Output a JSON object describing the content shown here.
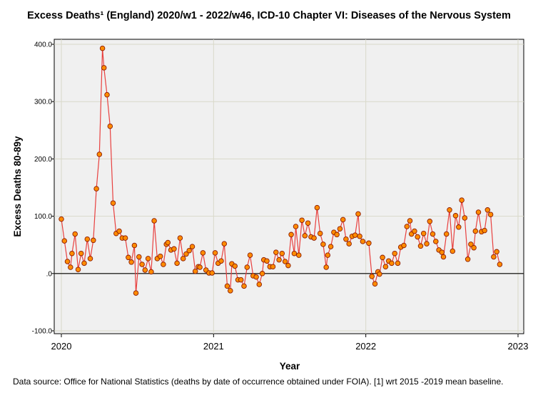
{
  "chart_data": {
    "type": "line",
    "title": "Excess Deaths¹ (England) 2020/w1 - 2022/w46, ICD-10 Chapter VI: Diseases of the Nervous System",
    "xlabel": "Year",
    "ylabel": "Excess Deaths 80-89y",
    "xlim": [
      2020,
      2023
    ],
    "ylim": [
      -100,
      400
    ],
    "y_ticks": [
      {
        "value": 400,
        "label": "400.0"
      },
      {
        "value": 300,
        "label": "300.0"
      },
      {
        "value": 200,
        "label": "200.0"
      },
      {
        "value": 100,
        "label": "100.0"
      },
      {
        "value": 0,
        "label": ".0"
      },
      {
        "value": -100,
        "label": "-100.0"
      }
    ],
    "x_ticks": [
      {
        "value": 2020,
        "label": "2020"
      },
      {
        "value": 2021,
        "label": "2021"
      },
      {
        "value": 2022,
        "label": "2022"
      },
      {
        "value": 2023,
        "label": "2023"
      }
    ],
    "reference_line": 0,
    "grid": true,
    "series": [
      {
        "name": "Excess Deaths 80-89y",
        "values": [
          [
            2020.0,
            95
          ],
          [
            2020.02,
            57
          ],
          [
            2020.04,
            21
          ],
          [
            2020.06,
            11
          ],
          [
            2020.07,
            35
          ],
          [
            2020.09,
            69
          ],
          [
            2020.11,
            7
          ],
          [
            2020.13,
            35
          ],
          [
            2020.15,
            18
          ],
          [
            2020.17,
            60
          ],
          [
            2020.19,
            26
          ],
          [
            2020.21,
            58
          ],
          [
            2020.23,
            148
          ],
          [
            2020.25,
            208
          ],
          [
            2020.27,
            393
          ],
          [
            2020.28,
            359
          ],
          [
            2020.3,
            312
          ],
          [
            2020.32,
            257
          ],
          [
            2020.34,
            123
          ],
          [
            2020.36,
            70
          ],
          [
            2020.38,
            74
          ],
          [
            2020.4,
            62
          ],
          [
            2020.42,
            62
          ],
          [
            2020.44,
            28
          ],
          [
            2020.46,
            20
          ],
          [
            2020.48,
            49
          ],
          [
            2020.49,
            -34
          ],
          [
            2020.51,
            29
          ],
          [
            2020.53,
            16
          ],
          [
            2020.55,
            6
          ],
          [
            2020.57,
            26
          ],
          [
            2020.59,
            3
          ],
          [
            2020.61,
            92
          ],
          [
            2020.63,
            26
          ],
          [
            2020.65,
            30
          ],
          [
            2020.67,
            16
          ],
          [
            2020.69,
            51
          ],
          [
            2020.7,
            54
          ],
          [
            2020.72,
            41
          ],
          [
            2020.74,
            43
          ],
          [
            2020.76,
            18
          ],
          [
            2020.78,
            62
          ],
          [
            2020.8,
            26
          ],
          [
            2020.82,
            34
          ],
          [
            2020.84,
            40
          ],
          [
            2020.86,
            47
          ],
          [
            2020.88,
            4
          ],
          [
            2020.9,
            12
          ],
          [
            2020.91,
            11
          ],
          [
            2020.93,
            36
          ],
          [
            2020.95,
            6
          ],
          [
            2020.97,
            1
          ],
          [
            2020.99,
            1
          ],
          [
            2021.01,
            36
          ],
          [
            2021.03,
            18
          ],
          [
            2021.05,
            22
          ],
          [
            2021.07,
            52
          ],
          [
            2021.09,
            -22
          ],
          [
            2021.11,
            -30
          ],
          [
            2021.12,
            17
          ],
          [
            2021.14,
            13
          ],
          [
            2021.16,
            -11
          ],
          [
            2021.18,
            -11
          ],
          [
            2021.2,
            -22
          ],
          [
            2021.22,
            11
          ],
          [
            2021.24,
            32
          ],
          [
            2021.26,
            -4
          ],
          [
            2021.28,
            -6
          ],
          [
            2021.3,
            -19
          ],
          [
            2021.32,
            0
          ],
          [
            2021.33,
            24
          ],
          [
            2021.35,
            22
          ],
          [
            2021.37,
            12
          ],
          [
            2021.39,
            12
          ],
          [
            2021.41,
            37
          ],
          [
            2021.43,
            24
          ],
          [
            2021.45,
            35
          ],
          [
            2021.47,
            21
          ],
          [
            2021.49,
            14
          ],
          [
            2021.51,
            68
          ],
          [
            2021.53,
            35
          ],
          [
            2021.54,
            82
          ],
          [
            2021.56,
            32
          ],
          [
            2021.58,
            93
          ],
          [
            2021.6,
            66
          ],
          [
            2021.62,
            88
          ],
          [
            2021.64,
            64
          ],
          [
            2021.66,
            62
          ],
          [
            2021.68,
            115
          ],
          [
            2021.7,
            70
          ],
          [
            2021.72,
            51
          ],
          [
            2021.74,
            11
          ],
          [
            2021.75,
            32
          ],
          [
            2021.77,
            47
          ],
          [
            2021.79,
            72
          ],
          [
            2021.81,
            68
          ],
          [
            2021.83,
            78
          ],
          [
            2021.85,
            94
          ],
          [
            2021.87,
            60
          ],
          [
            2021.89,
            52
          ],
          [
            2021.91,
            65
          ],
          [
            2021.93,
            67
          ],
          [
            2021.95,
            104
          ],
          [
            2021.96,
            65
          ],
          [
            2021.98,
            56
          ],
          [
            2022.02,
            53
          ],
          [
            2022.04,
            -5
          ],
          [
            2022.06,
            -18
          ],
          [
            2022.08,
            3
          ],
          [
            2022.09,
            -1
          ],
          [
            2022.11,
            28
          ],
          [
            2022.13,
            12
          ],
          [
            2022.15,
            22
          ],
          [
            2022.17,
            18
          ],
          [
            2022.19,
            35
          ],
          [
            2022.21,
            18
          ],
          [
            2022.23,
            46
          ],
          [
            2022.25,
            49
          ],
          [
            2022.27,
            82
          ],
          [
            2022.29,
            92
          ],
          [
            2022.3,
            69
          ],
          [
            2022.32,
            74
          ],
          [
            2022.34,
            64
          ],
          [
            2022.36,
            48
          ],
          [
            2022.38,
            70
          ],
          [
            2022.4,
            52
          ],
          [
            2022.42,
            91
          ],
          [
            2022.44,
            69
          ],
          [
            2022.46,
            56
          ],
          [
            2022.48,
            41
          ],
          [
            2022.5,
            37
          ],
          [
            2022.51,
            29
          ],
          [
            2022.53,
            69
          ],
          [
            2022.55,
            111
          ],
          [
            2022.57,
            39
          ],
          [
            2022.59,
            101
          ],
          [
            2022.61,
            81
          ],
          [
            2022.63,
            128
          ],
          [
            2022.65,
            97
          ],
          [
            2022.67,
            25
          ],
          [
            2022.69,
            51
          ],
          [
            2022.71,
            45
          ],
          [
            2022.72,
            74
          ],
          [
            2022.74,
            107
          ],
          [
            2022.76,
            73
          ],
          [
            2022.78,
            75
          ],
          [
            2022.8,
            111
          ],
          [
            2022.82,
            103
          ],
          [
            2022.84,
            29
          ],
          [
            2022.86,
            38
          ],
          [
            2022.88,
            16
          ]
        ]
      }
    ],
    "colors": {
      "line": "#e8403f",
      "marker_fill": "#ff8c00",
      "marker_edge": "#8b1a00",
      "plot_bg": "#f0f0f0",
      "grid": "#d9d9c9"
    }
  },
  "footnote": "Data source: Office for National Statistics (deaths by date of occurrence obtained under FOIA). [1] wrt 2015 -2019 mean baseline."
}
